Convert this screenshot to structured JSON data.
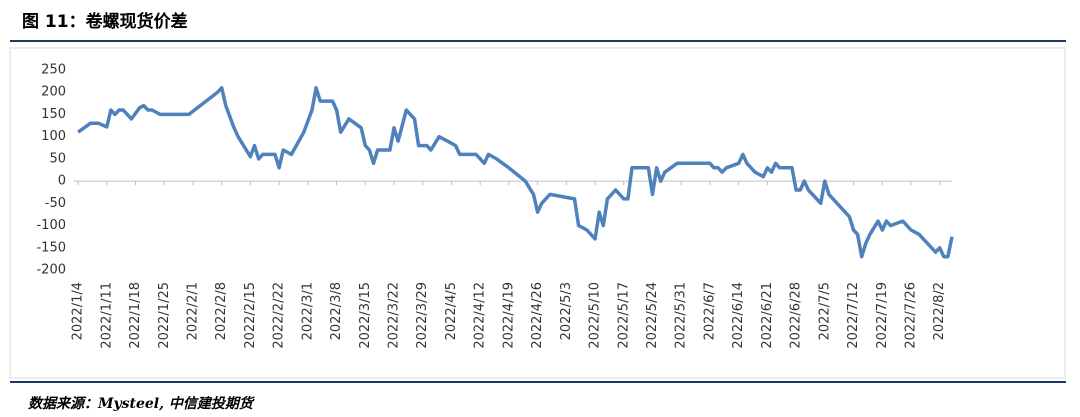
{
  "chart_data": {
    "type": "line",
    "title": "图 11：卷螺现货价差",
    "source": "数据来源：Mysteel, 中信建投期货",
    "x": [
      "2022/1/4",
      "2022/1/7",
      "2022/1/9",
      "2022/1/11",
      "2022/1/12",
      "2022/1/13",
      "2022/1/14",
      "2022/1/15",
      "2022/1/17",
      "2022/1/19",
      "2022/1/20",
      "2022/1/21",
      "2022/1/22",
      "2022/1/24",
      "2022/1/31",
      "2022/2/7",
      "2022/2/8",
      "2022/2/9",
      "2022/2/11",
      "2022/2/12",
      "2022/2/14",
      "2022/2/15",
      "2022/2/16",
      "2022/2/17",
      "2022/2/18",
      "2022/2/21",
      "2022/2/22",
      "2022/2/23",
      "2022/2/25",
      "2022/2/28",
      "2022/3/2",
      "2022/3/3",
      "2022/3/4",
      "2022/3/7",
      "2022/3/8",
      "2022/3/9",
      "2022/3/11",
      "2022/3/14",
      "2022/3/15",
      "2022/3/16",
      "2022/3/17",
      "2022/3/18",
      "2022/3/21",
      "2022/3/22",
      "2022/3/23",
      "2022/3/25",
      "2022/3/27",
      "2022/3/28",
      "2022/3/30",
      "2022/3/31",
      "2022/4/2",
      "2022/4/4",
      "2022/4/6",
      "2022/4/7",
      "2022/4/11",
      "2022/4/13",
      "2022/4/14",
      "2022/4/16",
      "2022/4/19",
      "2022/4/23",
      "2022/4/25",
      "2022/4/26",
      "2022/4/27",
      "2022/4/29",
      "2022/5/5",
      "2022/5/6",
      "2022/5/8",
      "2022/5/10",
      "2022/5/11",
      "2022/5/12",
      "2022/5/13",
      "2022/5/15",
      "2022/5/17",
      "2022/5/18",
      "2022/5/19",
      "2022/5/23",
      "2022/5/24",
      "2022/5/25",
      "2022/5/26",
      "2022/5/27",
      "2022/5/30",
      "2022/6/7",
      "2022/6/8",
      "2022/6/9",
      "2022/6/10",
      "2022/6/11",
      "2022/6/14",
      "2022/6/15",
      "2022/6/16",
      "2022/6/18",
      "2022/6/20",
      "2022/6/21",
      "2022/6/22",
      "2022/6/23",
      "2022/6/24",
      "2022/6/27",
      "2022/6/28",
      "2022/6/29",
      "2022/6/30",
      "2022/7/1",
      "2022/7/4",
      "2022/7/5",
      "2022/7/6",
      "2022/7/9",
      "2022/7/11",
      "2022/7/12",
      "2022/7/13",
      "2022/7/14",
      "2022/7/15",
      "2022/7/16",
      "2022/7/18",
      "2022/7/19",
      "2022/7/20",
      "2022/7/21",
      "2022/7/24",
      "2022/7/26",
      "2022/7/28",
      "2022/7/29",
      "2022/7/30",
      "2022/8/1",
      "2022/8/2",
      "2022/8/3",
      "2022/8/4",
      "2022/8/5"
    ],
    "series": [
      {
        "name": "卷螺现货价差",
        "color": "#4f81bd",
        "values": [
          110,
          130,
          130,
          122,
          160,
          150,
          160,
          160,
          140,
          165,
          170,
          160,
          160,
          150,
          150,
          200,
          210,
          170,
          120,
          100,
          70,
          55,
          80,
          50,
          60,
          60,
          30,
          70,
          60,
          110,
          160,
          210,
          180,
          180,
          160,
          110,
          140,
          120,
          80,
          70,
          40,
          70,
          70,
          120,
          90,
          160,
          140,
          80,
          80,
          70,
          100,
          90,
          80,
          60,
          60,
          40,
          60,
          50,
          30,
          0,
          -30,
          -70,
          -50,
          -30,
          -40,
          -100,
          -110,
          -130,
          -70,
          -100,
          -40,
          -20,
          -40,
          -40,
          30,
          30,
          -30,
          30,
          0,
          20,
          40,
          40,
          30,
          30,
          20,
          30,
          40,
          60,
          40,
          20,
          10,
          30,
          20,
          40,
          30,
          30,
          -20,
          -20,
          0,
          -20,
          -50,
          0,
          -30,
          -60,
          -80,
          -110,
          -120,
          -170,
          -140,
          -120,
          -90,
          -110,
          -90,
          -100,
          -90,
          -110,
          -120,
          -130,
          -140,
          -160,
          -150,
          -170,
          -170,
          -125
        ]
      }
    ],
    "xlim": [
      "2022/1/3",
      "2022/8/5"
    ],
    "xticks": [
      "2022/1/4",
      "2022/1/11",
      "2022/1/18",
      "2022/1/25",
      "2022/2/1",
      "2022/2/8",
      "2022/2/15",
      "2022/2/22",
      "2022/3/1",
      "2022/3/8",
      "2022/3/15",
      "2022/3/22",
      "2022/3/29",
      "2022/4/5",
      "2022/4/12",
      "2022/4/19",
      "2022/4/26",
      "2022/5/3",
      "2022/5/10",
      "2022/5/17",
      "2022/5/24",
      "2022/5/31",
      "2022/6/7",
      "2022/6/14",
      "2022/6/21",
      "2022/6/28",
      "2022/7/5",
      "2022/7/12",
      "2022/7/19",
      "2022/7/26",
      "2022/8/2"
    ],
    "ylim": [
      -200,
      250
    ],
    "yticks": [
      -200,
      -150,
      -100,
      -50,
      0,
      50,
      100,
      150,
      200,
      250
    ],
    "grid": false
  }
}
